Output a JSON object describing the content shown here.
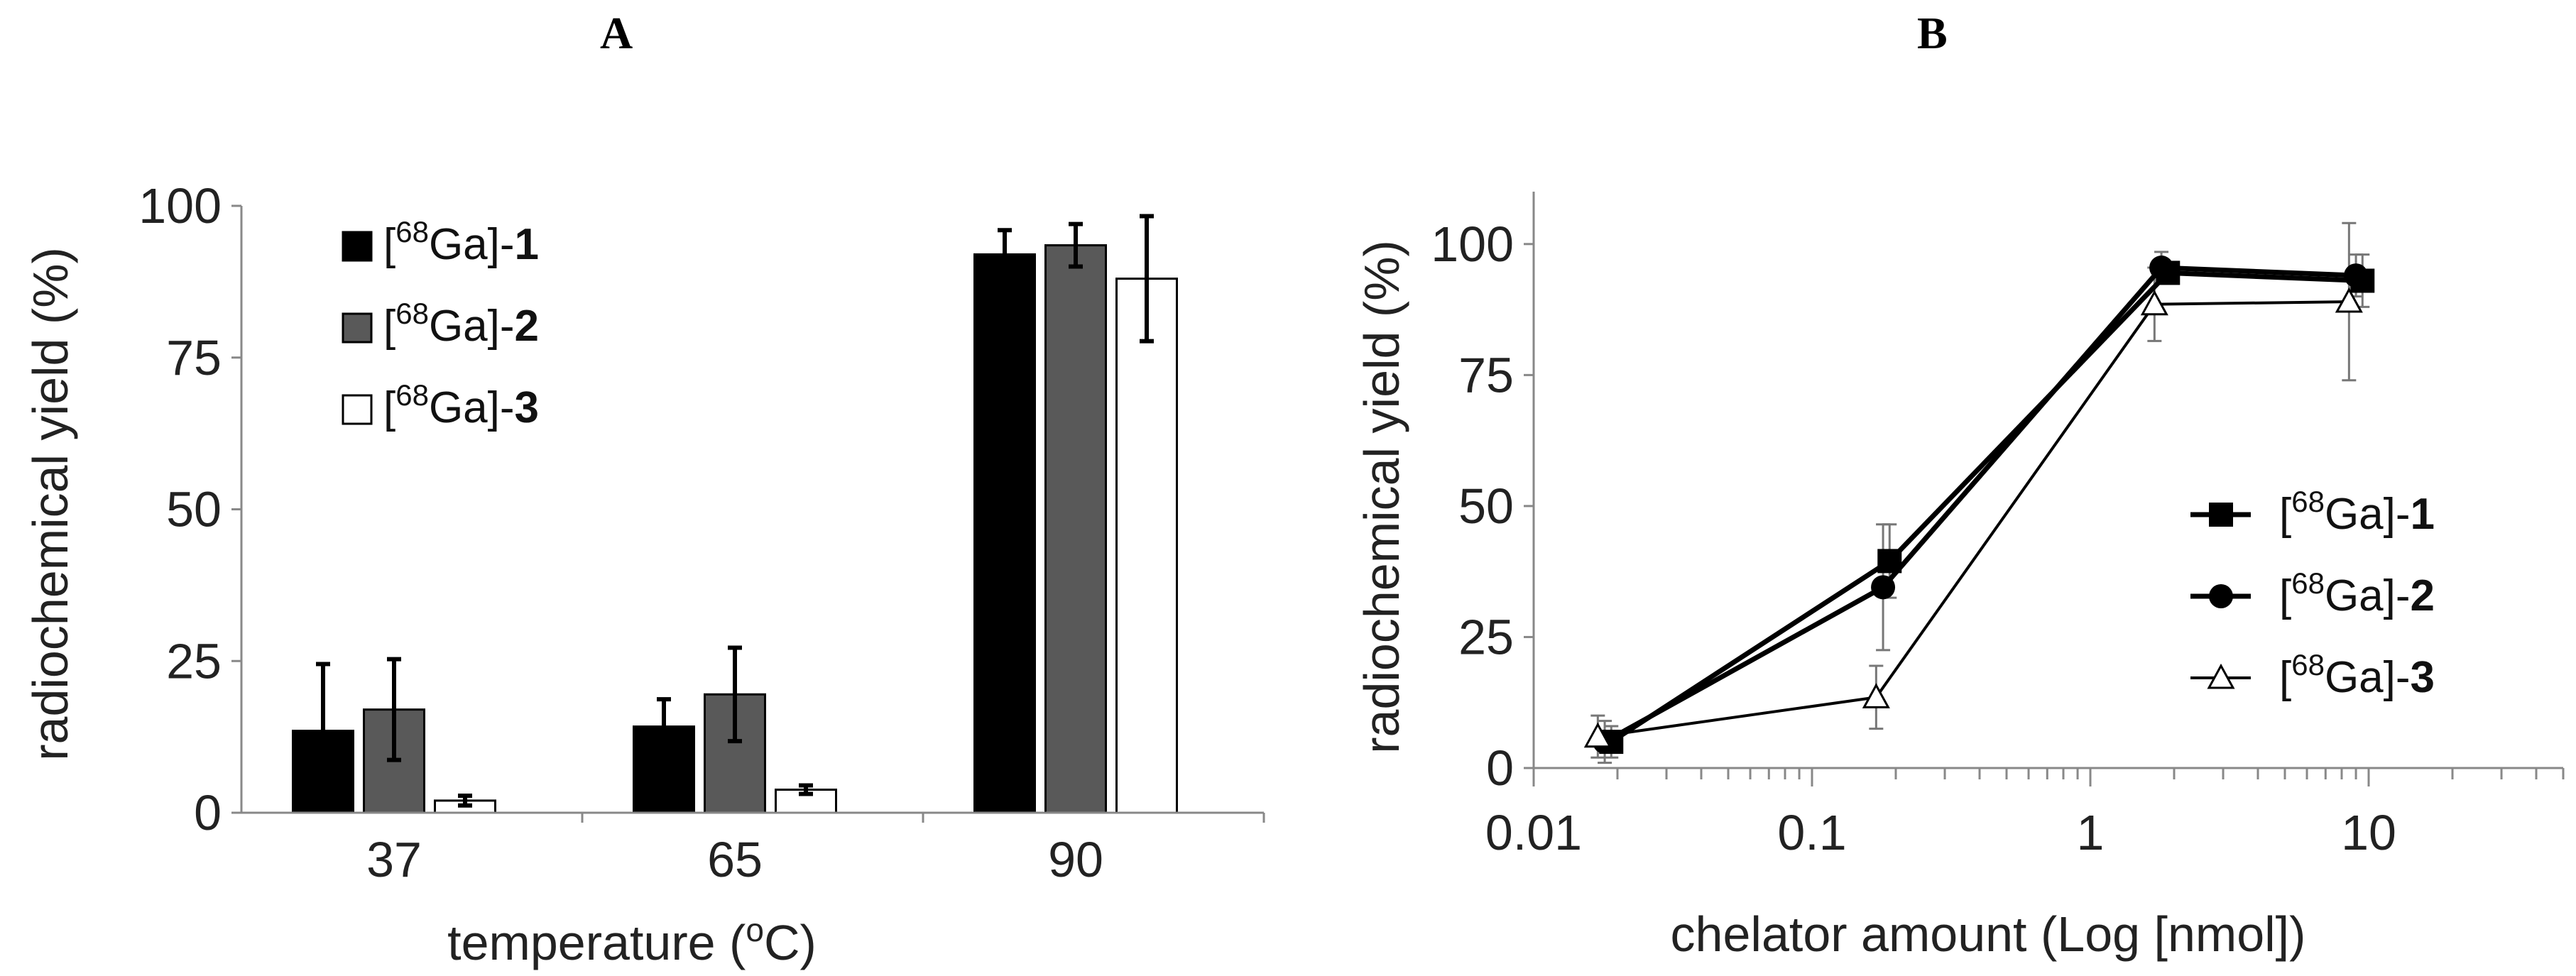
{
  "panels": {
    "a_label": "A",
    "b_label": "B"
  },
  "chart_data": [
    {
      "type": "bar",
      "panel": "A",
      "xlabel": "temperature (°C)",
      "ylabel": "radiochemical yield (%)",
      "ylim": [
        0,
        100
      ],
      "yticks": [
        0,
        25,
        50,
        75,
        100
      ],
      "categories": [
        "37",
        "65",
        "90"
      ],
      "series": [
        {
          "name": "[68Ga]-1",
          "prefix": "[",
          "sup": "68",
          "mid": "Ga]-",
          "num": "1",
          "color": "#000000",
          "values": [
            13.5,
            14.2,
            92.0
          ],
          "errors": [
            11.0,
            4.5,
            4.0
          ]
        },
        {
          "name": "[68Ga]-2",
          "prefix": "[",
          "sup": "68",
          "mid": "Ga]-",
          "num": "2",
          "color": "#595959",
          "values": [
            17.0,
            19.5,
            93.5
          ],
          "errors": [
            8.3,
            7.7,
            3.5
          ]
        },
        {
          "name": "[68Ga]-3",
          "prefix": "[",
          "sup": "68",
          "mid": "Ga]-",
          "num": "3",
          "color": "#ffffff",
          "values": [
            2.0,
            3.8,
            88.0
          ],
          "errors": [
            0.8,
            0.7,
            10.3
          ]
        }
      ],
      "legend": "top-left"
    },
    {
      "type": "line",
      "panel": "B",
      "xscale": "log",
      "xlabel": "chelator amount (Log [nmol])",
      "ylabel": "radiochemical yield (%)",
      "xlim": [
        0.01,
        50
      ],
      "ylim": [
        0,
        110
      ],
      "xticks": [
        0.01,
        0.1,
        1,
        10
      ],
      "xtick_labels": [
        "0.01",
        "0.1",
        "1",
        "10"
      ],
      "yticks": [
        0,
        25,
        50,
        75,
        100
      ],
      "series": [
        {
          "name": "[68Ga]-1",
          "prefix": "[",
          "sup": "68",
          "mid": "Ga]-",
          "num": "1",
          "marker": "square",
          "x": [
            0.019,
            0.19,
            1.9,
            9.5
          ],
          "y": [
            5.0,
            39.5,
            94.5,
            93.0
          ],
          "errors": [
            3.0,
            7.0,
            2.0,
            5.0
          ]
        },
        {
          "name": "[68Ga]-2",
          "prefix": "[",
          "sup": "68",
          "mid": "Ga]-",
          "num": "2",
          "marker": "circle",
          "x": [
            0.018,
            0.18,
            1.8,
            9.0
          ],
          "y": [
            5.0,
            34.5,
            95.5,
            94.0
          ],
          "errors": [
            4.0,
            12.0,
            3.0,
            4.0
          ]
        },
        {
          "name": "[68Ga]-3",
          "prefix": "[",
          "sup": "68",
          "mid": "Ga]-",
          "num": "3",
          "marker": "triangle",
          "x": [
            0.017,
            0.17,
            1.7,
            8.5
          ],
          "y": [
            6.0,
            13.5,
            88.5,
            89.0
          ],
          "errors": [
            4.0,
            6.0,
            7.0,
            15.0
          ]
        }
      ],
      "legend": "bottom-right"
    }
  ]
}
